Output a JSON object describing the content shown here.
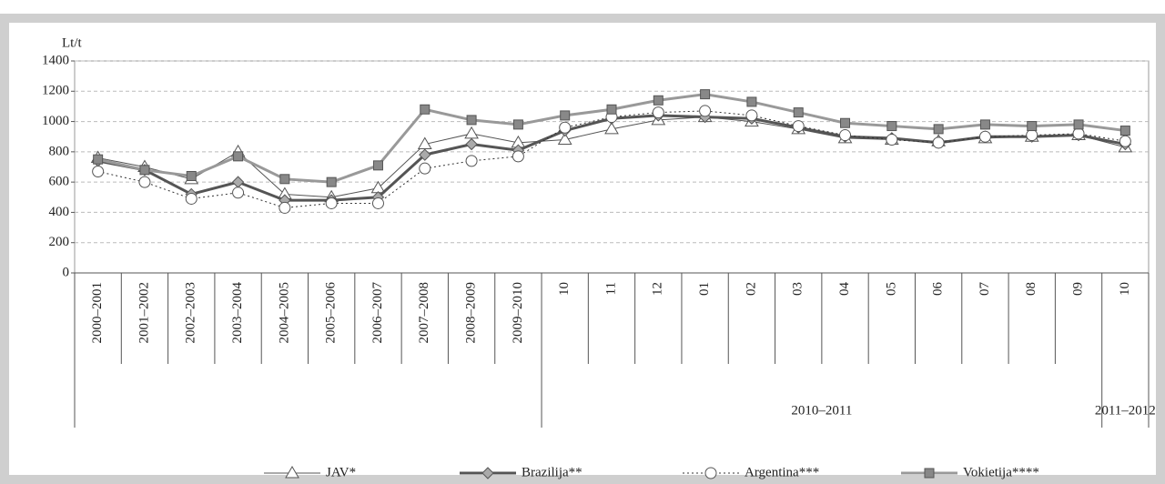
{
  "chart_data": {
    "type": "line",
    "y_label": "Lt/t",
    "categories": [
      "2000–2001",
      "2001–2002",
      "2002–2003",
      "2003–2004",
      "2004–2005",
      "2005–2006",
      "2006–2007",
      "2007–2008",
      "2008–2009",
      "2009–2010",
      "10",
      "11",
      "12",
      "01",
      "02",
      "03",
      "04",
      "05",
      "06",
      "07",
      "08",
      "09",
      "10"
    ],
    "groups": [
      {
        "label": "2010–2011",
        "start": 10,
        "end": 21
      },
      {
        "label": "2011–2012",
        "start": 22,
        "end": 22
      }
    ],
    "ylim": [
      0,
      1400
    ],
    "yticks": [
      0,
      200,
      400,
      600,
      800,
      1000,
      1200,
      1400
    ],
    "grid": true,
    "legend": "bottom",
    "series": [
      {
        "name": "JAV*",
        "color": "#555555",
        "width": 1,
        "dash": "none",
        "marker": "triangle",
        "marker_fill": "#ffffff",
        "values": [
          760,
          700,
          620,
          800,
          520,
          500,
          560,
          850,
          920,
          860,
          880,
          950,
          1010,
          1030,
          1000,
          950,
          890,
          880,
          870,
          890,
          900,
          910,
          830
        ]
      },
      {
        "name": "Brazilija**",
        "color": "#555555",
        "width": 3,
        "dash": "none",
        "marker": "diamond",
        "marker_fill": "#aaaaaa",
        "values": [
          740,
          680,
          520,
          600,
          480,
          480,
          500,
          780,
          850,
          810,
          940,
          1020,
          1040,
          1030,
          1020,
          960,
          900,
          890,
          860,
          900,
          900,
          910,
          850
        ]
      },
      {
        "name": "Argentina***",
        "color": "#333333",
        "width": 1,
        "dash": "2 3",
        "marker": "circle",
        "marker_fill": "#ffffff",
        "values": [
          670,
          600,
          490,
          530,
          430,
          460,
          460,
          690,
          740,
          770,
          960,
          1030,
          1060,
          1070,
          1040,
          970,
          910,
          880,
          860,
          900,
          910,
          920,
          870
        ]
      },
      {
        "name": "Vokietija****",
        "color": "#999999",
        "width": 3,
        "dash": "none",
        "marker": "square",
        "marker_fill": "#888888",
        "values": [
          750,
          680,
          640,
          770,
          620,
          600,
          710,
          1080,
          1010,
          980,
          1040,
          1080,
          1140,
          1180,
          1130,
          1060,
          990,
          970,
          950,
          980,
          970,
          980,
          940
        ]
      }
    ]
  }
}
